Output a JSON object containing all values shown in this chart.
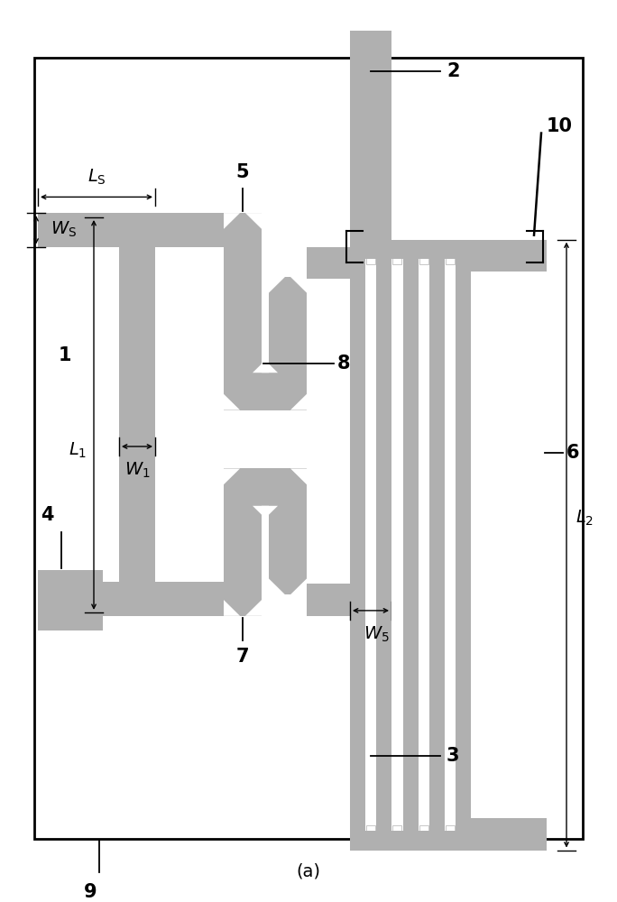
{
  "fig_width": 6.84,
  "fig_height": 10.0,
  "dpi": 100,
  "bg_color": "#ffffff",
  "gray": "#b0b0b0",
  "caption": "(a)"
}
